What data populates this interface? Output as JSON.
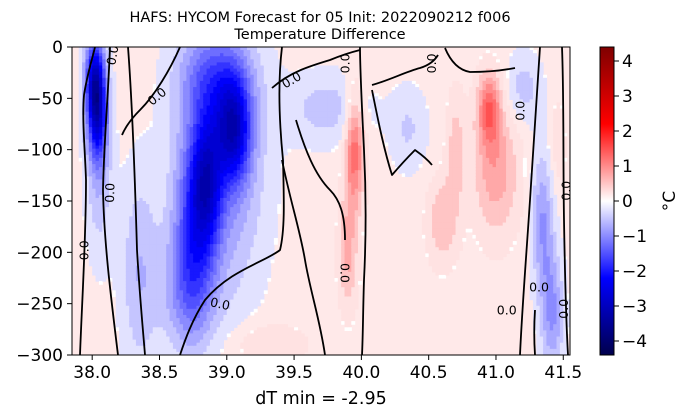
{
  "chart_data": {
    "type": "heatmap",
    "title_line1": "HAFS: HYCOM Forecast for 05 Init: 2022090212 f006",
    "title_line2": "Temperature Difference",
    "xlabel": "dT min = -2.95",
    "ylabel": "",
    "xlim": [
      37.85,
      41.55
    ],
    "ylim": [
      -300,
      0
    ],
    "x_ticks": [
      {
        "value": 38.0,
        "label": "38.0"
      },
      {
        "value": 38.5,
        "label": "38.5"
      },
      {
        "value": 39.0,
        "label": "39.0"
      },
      {
        "value": 39.5,
        "label": "39.5"
      },
      {
        "value": 40.0,
        "label": "40.0"
      },
      {
        "value": 40.5,
        "label": "40.5"
      },
      {
        "value": 41.0,
        "label": "41.0"
      },
      {
        "value": 41.5,
        "label": "41.5"
      }
    ],
    "y_ticks": [
      {
        "value": 0,
        "label": "0"
      },
      {
        "value": -50,
        "label": "−50"
      },
      {
        "value": -100,
        "label": "−100"
      },
      {
        "value": -150,
        "label": "−150"
      },
      {
        "value": -200,
        "label": "−200"
      },
      {
        "value": -250,
        "label": "−250"
      },
      {
        "value": -300,
        "label": "−300"
      }
    ],
    "colorbar": {
      "label": "°C",
      "range": [
        -4.4,
        4.4
      ],
      "colormap": "seismic",
      "ticks": [
        {
          "value": -4,
          "label": "−4"
        },
        {
          "value": -3,
          "label": "−3"
        },
        {
          "value": -2,
          "label": "−2"
        },
        {
          "value": -1,
          "label": "−1"
        },
        {
          "value": 0,
          "label": "0"
        },
        {
          "value": 1,
          "label": "1"
        },
        {
          "value": 2,
          "label": "2"
        },
        {
          "value": 3,
          "label": "3"
        },
        {
          "value": 4,
          "label": "4"
        }
      ]
    },
    "background_value": 0.25,
    "features": [
      {
        "x": 38.02,
        "y": -30,
        "sx": 0.05,
        "sy": 28,
        "amp": -2.4
      },
      {
        "x": 38.04,
        "y": -70,
        "sx": 0.05,
        "sy": 30,
        "amp": -2.0
      },
      {
        "x": 38.05,
        "y": -120,
        "sx": 0.07,
        "sy": 60,
        "amp": -0.6
      },
      {
        "x": 38.85,
        "y": -130,
        "sx": 0.08,
        "sy": 45,
        "amp": -1.8
      },
      {
        "x": 39.05,
        "y": -80,
        "sx": 0.09,
        "sy": 35,
        "amp": -2.2
      },
      {
        "x": 38.75,
        "y": -180,
        "sx": 0.1,
        "sy": 60,
        "amp": -1.2
      },
      {
        "x": 38.95,
        "y": -110,
        "sx": 0.22,
        "sy": 95,
        "amp": -1.0
      },
      {
        "x": 38.9,
        "y": -30,
        "sx": 0.18,
        "sy": 30,
        "amp": -0.9
      },
      {
        "x": 38.7,
        "y": -240,
        "sx": 0.14,
        "sy": 40,
        "amp": -0.7
      },
      {
        "x": 38.35,
        "y": -220,
        "sx": 0.1,
        "sy": 70,
        "amp": -0.6
      },
      {
        "x": 39.75,
        "y": -60,
        "sx": 0.22,
        "sy": 25,
        "amp": -0.5
      },
      {
        "x": 39.95,
        "y": -100,
        "sx": 0.05,
        "sy": 40,
        "amp": 1.3
      },
      {
        "x": 39.9,
        "y": -200,
        "sx": 0.05,
        "sy": 40,
        "amp": 0.7
      },
      {
        "x": 40.35,
        "y": -80,
        "sx": 0.1,
        "sy": 30,
        "amp": -0.4
      },
      {
        "x": 40.95,
        "y": -60,
        "sx": 0.06,
        "sy": 25,
        "amp": 1.2
      },
      {
        "x": 41.0,
        "y": -120,
        "sx": 0.12,
        "sy": 45,
        "amp": 0.8
      },
      {
        "x": 40.6,
        "y": -170,
        "sx": 0.08,
        "sy": 30,
        "amp": 0.6
      },
      {
        "x": 40.7,
        "y": -100,
        "sx": 0.05,
        "sy": 40,
        "amp": 0.5
      },
      {
        "x": 41.35,
        "y": -170,
        "sx": 0.06,
        "sy": 50,
        "amp": -0.9
      },
      {
        "x": 41.42,
        "y": -260,
        "sx": 0.06,
        "sy": 40,
        "amp": -0.9
      },
      {
        "x": 41.2,
        "y": -40,
        "sx": 0.1,
        "sy": 25,
        "amp": -0.5
      },
      {
        "x": 41.45,
        "y": -100,
        "sx": 0.05,
        "sy": 40,
        "amp": 0.3
      },
      {
        "x": 39.3,
        "y": -290,
        "sx": 0.2,
        "sy": 15,
        "amp": 0.4
      }
    ],
    "contour_labels": [
      {
        "x": 38.15,
        "y": -8,
        "text": "0.0",
        "angle": -80
      },
      {
        "x": 38.13,
        "y": -142,
        "text": "0.0",
        "angle": -88
      },
      {
        "x": 37.94,
        "y": -198,
        "text": "0.0",
        "angle": -90
      },
      {
        "x": 38.48,
        "y": -48,
        "text": "0.0",
        "angle": -40
      },
      {
        "x": 39.48,
        "y": -32,
        "text": "0.0",
        "angle": -30
      },
      {
        "x": 39.88,
        "y": -16,
        "text": "0.0",
        "angle": -90
      },
      {
        "x": 40.52,
        "y": -16,
        "text": "0.0",
        "angle": -90
      },
      {
        "x": 41.18,
        "y": -62,
        "text": "0.0",
        "angle": -90
      },
      {
        "x": 41.52,
        "y": -140,
        "text": "0.0",
        "angle": -90
      },
      {
        "x": 38.95,
        "y": -250,
        "text": "0.0",
        "angle": 12
      },
      {
        "x": 39.88,
        "y": -220,
        "text": "0.0",
        "angle": 90
      },
      {
        "x": 41.08,
        "y": -256,
        "text": "0.0",
        "angle": 0
      },
      {
        "x": 41.32,
        "y": -234,
        "text": "0.0",
        "angle": 0
      },
      {
        "x": 41.5,
        "y": -255,
        "text": "0.0",
        "angle": -90
      }
    ]
  }
}
